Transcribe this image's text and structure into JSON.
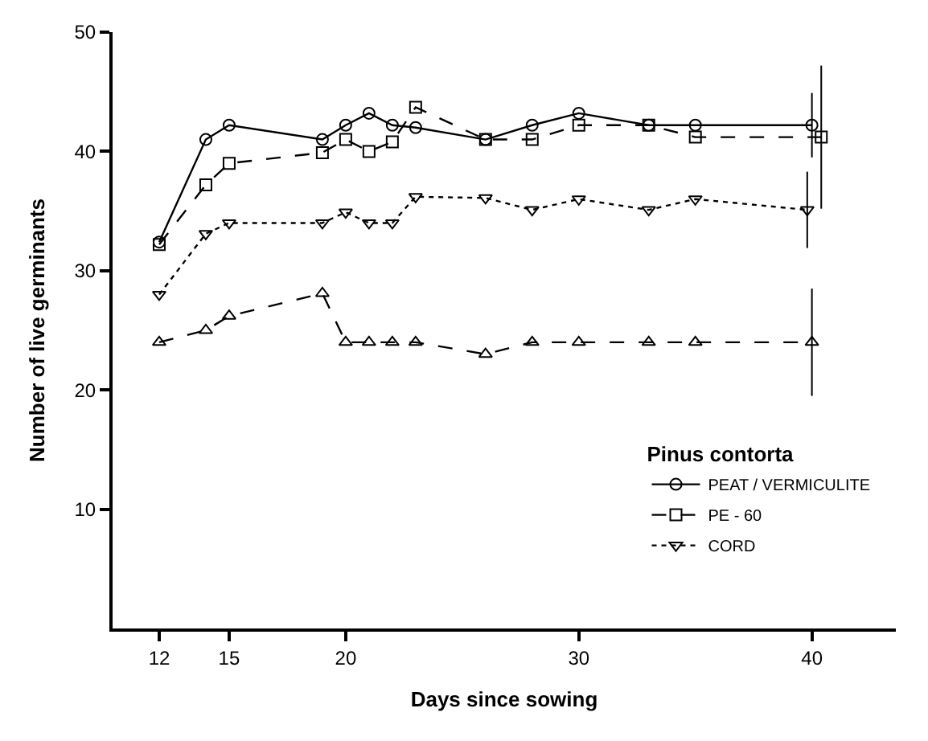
{
  "chart_data": {
    "type": "line",
    "xlabel": "Days since sowing",
    "ylabel": "Number of live germinants",
    "legend_title": "Pinus contorta",
    "legend": "bottom right",
    "xlim": [
      10,
      43.6
    ],
    "xticks": [
      12,
      15,
      20,
      30,
      40
    ],
    "ylim": [
      0,
      50
    ],
    "yticks": [
      10,
      20,
      30,
      40,
      50
    ],
    "series": [
      {
        "name": "PEAT / VERMICULITE",
        "color": "#000000",
        "marker": "circle",
        "line_style": "solid",
        "x": [
          12,
          14,
          15,
          19,
          20,
          21,
          22,
          23,
          26,
          28,
          30,
          33,
          35,
          40
        ],
        "values": [
          32.4,
          41,
          42.2,
          41,
          42.2,
          43.2,
          42.2,
          42,
          41,
          42.2,
          43.2,
          42.2,
          42.2,
          42.2
        ],
        "errors": [
          null,
          null,
          null,
          null,
          null,
          null,
          null,
          null,
          null,
          null,
          null,
          null,
          null,
          2.7
        ]
      },
      {
        "color": "#000000",
        "marker": "triangle-up",
        "line_style": "dashed",
        "x": [
          12,
          14,
          15,
          19,
          20,
          21,
          22,
          23,
          26,
          28,
          30,
          33,
          35,
          40
        ],
        "values": [
          24,
          25,
          26.2,
          28.1,
          24,
          24,
          24,
          24,
          23,
          24,
          24,
          24,
          24,
          24
        ],
        "errors": [
          null,
          null,
          null,
          null,
          null,
          null,
          null,
          null,
          null,
          null,
          null,
          null,
          null,
          4.5
        ]
      },
      {
        "name": "PE - 60",
        "color": "#000000",
        "marker": "square",
        "line_style": "dashed",
        "x": [
          12,
          14,
          15,
          19,
          20,
          21,
          22,
          23,
          26,
          28,
          30,
          33,
          35,
          40.4
        ],
        "values": [
          32.2,
          37.2,
          39,
          39.9,
          41,
          40,
          40.8,
          43.7,
          41,
          41,
          42.2,
          42.2,
          41.2,
          41.2
        ],
        "errors": [
          null,
          null,
          null,
          null,
          null,
          null,
          null,
          null,
          null,
          null,
          null,
          null,
          null,
          6
        ]
      },
      {
        "name": "CORD",
        "color": "#000000",
        "marker": "triangle-down",
        "line_style": "dotted",
        "x": [
          12,
          14,
          15,
          19,
          20,
          21,
          22,
          23,
          26,
          28,
          30,
          33,
          35,
          39.8
        ],
        "values": [
          28,
          33.1,
          34,
          34,
          34.9,
          34,
          34,
          36.2,
          36.1,
          35.1,
          36,
          35.1,
          36,
          35.1
        ],
        "errors": [
          null,
          null,
          null,
          null,
          null,
          null,
          null,
          null,
          null,
          null,
          null,
          null,
          null,
          3.2
        ]
      }
    ]
  }
}
